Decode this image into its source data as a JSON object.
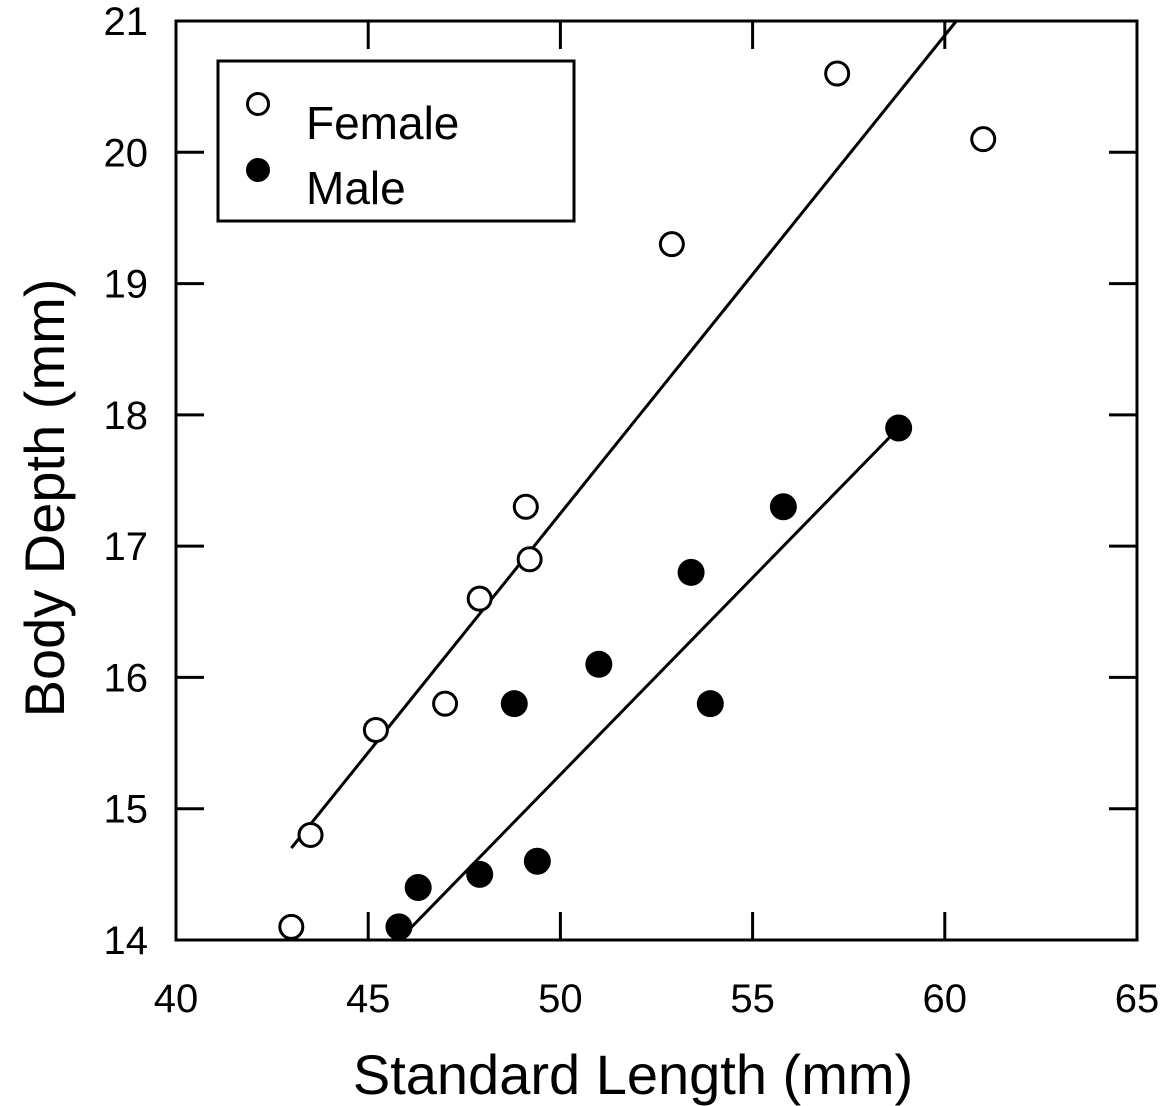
{
  "chart_data": {
    "type": "scatter",
    "xlabel": "Standard Length (mm)",
    "ylabel": "Body Depth (mm)",
    "xlim": [
      40,
      65
    ],
    "ylim": [
      14,
      21
    ],
    "xticks": [
      40,
      45,
      50,
      55,
      60,
      65
    ],
    "yticks": [
      14,
      15,
      16,
      17,
      18,
      19,
      20,
      21
    ],
    "grid": false,
    "legend_position": "top-left",
    "series": [
      {
        "name": "Female",
        "marker": "open-circle",
        "color": "#000000",
        "points": [
          [
            43.0,
            14.1
          ],
          [
            43.5,
            14.8
          ],
          [
            45.2,
            15.6
          ],
          [
            47.0,
            15.8
          ],
          [
            47.9,
            16.6
          ],
          [
            49.1,
            17.3
          ],
          [
            49.2,
            16.9
          ],
          [
            52.9,
            19.3
          ],
          [
            57.2,
            20.6
          ],
          [
            61.0,
            20.1
          ]
        ],
        "fit_line": [
          [
            43.0,
            14.7
          ],
          [
            60.3,
            21.0
          ]
        ]
      },
      {
        "name": "Male",
        "marker": "filled-circle",
        "color": "#000000",
        "points": [
          [
            45.8,
            14.1
          ],
          [
            46.3,
            14.4
          ],
          [
            47.9,
            14.5
          ],
          [
            49.4,
            14.6
          ],
          [
            48.8,
            15.8
          ],
          [
            51.0,
            16.1
          ],
          [
            53.4,
            16.8
          ],
          [
            53.9,
            15.8
          ],
          [
            55.8,
            17.3
          ],
          [
            58.8,
            17.9
          ]
        ],
        "fit_line": [
          [
            45.8,
            14.0
          ],
          [
            58.8,
            17.9
          ]
        ]
      }
    ]
  }
}
